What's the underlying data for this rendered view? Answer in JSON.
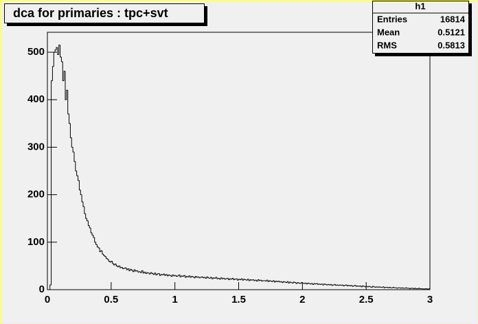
{
  "chart_data": {
    "type": "histogram",
    "title": "dca for primaries : tpc+svt",
    "stats": {
      "name": "h1",
      "rows": [
        {
          "label": "Entries",
          "value": 16814
        },
        {
          "label": "Mean",
          "value": 0.5121
        },
        {
          "label": "RMS",
          "value": 0.5813
        }
      ]
    },
    "color": "#000000",
    "bins": [
      0,
      0.01,
      0.02,
      0.03,
      0.04,
      0.05,
      0.06,
      0.07,
      0.08,
      0.09,
      0.1,
      0.11,
      0.12,
      0.13,
      0.14,
      0.15,
      0.16,
      0.17,
      0.18,
      0.19,
      0.2,
      0.21,
      0.22,
      0.23,
      0.24,
      0.25,
      0.26,
      0.27,
      0.28,
      0.29,
      0.3,
      0.31,
      0.32,
      0.33,
      0.34,
      0.35,
      0.36,
      0.37,
      0.38,
      0.39,
      0.4,
      0.41,
      0.42,
      0.43,
      0.44,
      0.45,
      0.46,
      0.47,
      0.48,
      0.49,
      0.5,
      0.51,
      0.52,
      0.53,
      0.54,
      0.55,
      0.56,
      0.57,
      0.58,
      0.59,
      0.6,
      0.61,
      0.62,
      0.63,
      0.64,
      0.65,
      0.66,
      0.67,
      0.68,
      0.69,
      0.7,
      0.71,
      0.72,
      0.73,
      0.74,
      0.75,
      0.76,
      0.77,
      0.78,
      0.79,
      0.8,
      0.81,
      0.82,
      0.83,
      0.84,
      0.85,
      0.86,
      0.87,
      0.88,
      0.89,
      0.9,
      0.91,
      0.92,
      0.93,
      0.94,
      0.95,
      0.96,
      0.97,
      0.98,
      0.99,
      1,
      1.01,
      1.02,
      1.03,
      1.04,
      1.05,
      1.06,
      1.07,
      1.08,
      1.09,
      1.1,
      1.11,
      1.12,
      1.13,
      1.14,
      1.15,
      1.16,
      1.17,
      1.18,
      1.19,
      1.2,
      1.21,
      1.22,
      1.23,
      1.24,
      1.25,
      1.26,
      1.27,
      1.28,
      1.29,
      1.3,
      1.31,
      1.32,
      1.33,
      1.34,
      1.35,
      1.36,
      1.37,
      1.38,
      1.39,
      1.4,
      1.41,
      1.42,
      1.43,
      1.44,
      1.45,
      1.46,
      1.47,
      1.48,
      1.49,
      1.5,
      1.51,
      1.52,
      1.53,
      1.54,
      1.55,
      1.56,
      1.57,
      1.58,
      1.59,
      1.6,
      1.61,
      1.62,
      1.63,
      1.64,
      1.65,
      1.66,
      1.67,
      1.68,
      1.69,
      1.7,
      1.71,
      1.72,
      1.73,
      1.74,
      1.75,
      1.76,
      1.77,
      1.78,
      1.79,
      1.8,
      1.81,
      1.82,
      1.83,
      1.84,
      1.85,
      1.86,
      1.87,
      1.88,
      1.89,
      1.9,
      1.91,
      1.92,
      1.93,
      1.94,
      1.95,
      1.96,
      1.97,
      1.98,
      1.99,
      2,
      2.01,
      2.02,
      2.03,
      2.04,
      2.05,
      2.06,
      2.07,
      2.08,
      2.09,
      2.1,
      2.11,
      2.12,
      2.13,
      2.14,
      2.15,
      2.16,
      2.17,
      2.18,
      2.19,
      2.2,
      2.21,
      2.22,
      2.23,
      2.24,
      2.25,
      2.26,
      2.27,
      2.28,
      2.29,
      2.3,
      2.31,
      2.32,
      2.33,
      2.34,
      2.35,
      2.36,
      2.37,
      2.38,
      2.39,
      2.4,
      2.41,
      2.42,
      2.43,
      2.44,
      2.45,
      2.46,
      2.47,
      2.48,
      2.49,
      2.5,
      2.51,
      2.52,
      2.53,
      2.54,
      2.55,
      2.56,
      2.57,
      2.58,
      2.59,
      2.6,
      2.61,
      2.62,
      2.63,
      2.64,
      2.65,
      2.66,
      2.67,
      2.68,
      2.69,
      2.7,
      2.71,
      2.72,
      2.73,
      2.74,
      2.75,
      2.76,
      2.77,
      2.78,
      2.79,
      2.8,
      2.81,
      2.82,
      2.83,
      2.84,
      2.85,
      2.86,
      2.87,
      2.88,
      2.89,
      2.9,
      2.91,
      2.92,
      2.93,
      2.94,
      2.95,
      2.96,
      2.97,
      2.98,
      2.99,
      3
    ],
    "values": [
      0,
      0,
      10,
      440,
      470,
      500,
      505,
      510,
      495,
      515,
      490,
      480,
      440,
      460,
      400,
      420,
      370,
      350,
      320,
      300,
      290,
      270,
      250,
      240,
      230,
      210,
      200,
      185,
      175,
      160,
      150,
      145,
      135,
      130,
      120,
      115,
      110,
      100,
      95,
      90,
      88,
      80,
      82,
      75,
      72,
      70,
      66,
      64,
      60,
      58,
      60,
      55,
      52,
      54,
      50,
      48,
      50,
      46,
      47,
      44,
      45,
      46,
      42,
      44,
      40,
      43,
      41,
      38,
      42,
      39,
      40,
      37,
      38,
      36,
      40,
      35,
      37,
      34,
      36,
      35,
      33,
      36,
      34,
      32,
      35,
      31,
      33,
      34,
      30,
      32,
      31,
      33,
      30,
      32,
      29,
      31,
      30,
      28,
      31,
      29,
      30,
      28,
      29,
      31,
      27,
      29,
      28,
      30,
      26,
      28,
      27,
      29,
      26,
      28,
      27,
      25,
      28,
      26,
      27,
      25,
      26,
      27,
      25,
      26,
      24,
      27,
      25,
      24,
      26,
      23,
      25,
      24,
      26,
      23,
      24,
      22,
      25,
      23,
      24,
      22,
      23,
      24,
      21,
      23,
      22,
      24,
      21,
      22,
      23,
      20,
      22,
      21,
      23,
      20,
      22,
      21,
      20,
      22,
      19,
      21,
      20,
      21,
      19,
      20,
      18,
      21,
      19,
      20,
      18,
      19,
      19,
      18,
      20,
      17,
      19,
      18,
      17,
      19,
      16,
      18,
      17,
      18,
      16,
      17,
      15,
      17,
      16,
      15,
      17,
      14,
      16,
      15,
      14,
      16,
      15,
      13,
      15,
      14,
      13,
      15,
      14,
      13,
      14,
      12,
      14,
      13,
      12,
      13,
      11,
      13,
      12,
      13,
      11,
      12,
      11,
      12,
      10,
      12,
      11,
      10,
      11,
      10,
      11,
      9,
      10,
      11,
      9,
      10,
      9,
      10,
      9,
      10,
      8,
      9,
      10,
      8,
      9,
      8,
      9,
      7,
      8,
      9,
      7,
      8,
      7,
      8,
      6,
      8,
      7,
      6,
      7,
      6,
      7,
      6,
      5,
      7,
      6,
      5,
      6,
      5,
      6,
      5,
      5,
      6,
      4,
      5,
      5,
      4,
      5,
      4,
      4,
      5,
      4,
      4,
      3,
      4,
      4,
      3,
      4,
      3,
      3,
      4,
      3,
      3,
      2,
      3,
      3,
      2,
      3,
      2,
      2,
      3,
      2,
      2,
      2,
      1,
      2,
      2,
      1,
      2
    ],
    "xlim": [
      0,
      3
    ],
    "xticks": [
      0,
      0.5,
      1,
      1.5,
      2,
      2.5,
      3
    ],
    "ylim": [
      0,
      542
    ],
    "yticks": [
      0,
      100,
      200,
      300,
      400,
      500
    ]
  }
}
